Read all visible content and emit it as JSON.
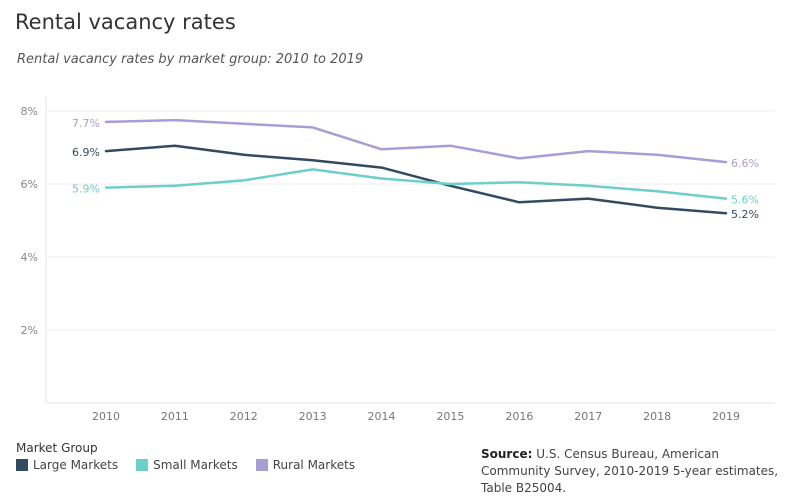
{
  "title": "Rental vacancy rates",
  "subtitle": "Rental vacancy rates by market group: 2010 to 2019",
  "legend": {
    "title": "Market Group",
    "items": [
      {
        "label": "Large Markets",
        "color": "#334a63"
      },
      {
        "label": "Small Markets",
        "color": "#6ccfcb"
      },
      {
        "label": "Rural Markets",
        "color": "#a59fd5"
      }
    ]
  },
  "source": {
    "label": "Source:",
    "text": "U.S. Census Bureau, American Community Survey, 2010-2019 5-year estimates, Table B25004."
  },
  "chart_data": {
    "type": "line",
    "title": "Rental vacancy rates",
    "subtitle": "Rental vacancy rates by market group: 2010 to 2019",
    "x": [
      "2010",
      "2011",
      "2012",
      "2013",
      "2014",
      "2015",
      "2016",
      "2017",
      "2018",
      "2019"
    ],
    "yticks": [
      "2%",
      "4%",
      "6%",
      "8%"
    ],
    "ytick_values": [
      2,
      4,
      6,
      8
    ],
    "ylim": [
      0,
      8
    ],
    "grid": true,
    "series": [
      {
        "name": "Rural Markets",
        "color": "#a59fd5",
        "values": [
          7.7,
          7.75,
          7.65,
          7.55,
          6.95,
          7.05,
          6.7,
          6.9,
          6.8,
          6.6
        ],
        "start_label": "7.7%",
        "end_label": "6.6%"
      },
      {
        "name": "Large Markets",
        "color": "#334a63",
        "values": [
          6.9,
          7.05,
          6.8,
          6.65,
          6.45,
          5.95,
          5.5,
          5.6,
          5.35,
          5.2
        ],
        "start_label": "6.9%",
        "end_label": "5.2%"
      },
      {
        "name": "Small Markets",
        "color": "#6ccfcb",
        "values": [
          5.9,
          5.95,
          6.1,
          6.4,
          6.15,
          6.0,
          6.05,
          5.95,
          5.8,
          5.6
        ],
        "start_label": "5.9%",
        "end_label": "5.6%"
      }
    ]
  }
}
